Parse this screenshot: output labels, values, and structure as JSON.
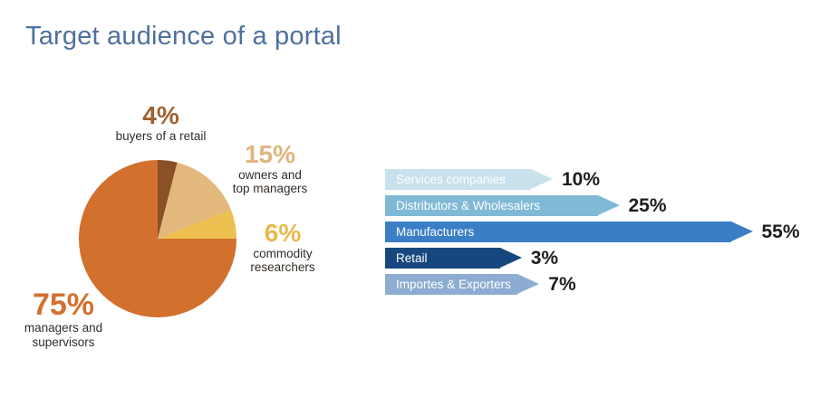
{
  "title": "Target audience of a portal",
  "colors": {
    "title": "#4e709f",
    "value_text": "#1d1d1d",
    "callout_label_text": "#332d28",
    "bar_label_text": "#ffffff"
  },
  "pie": {
    "callouts": [
      {
        "pct": "4%",
        "color": "#a0602f",
        "lines": [
          "buyers of a retail"
        ]
      },
      {
        "pct": "15%",
        "color": "#dfb57e",
        "lines": [
          "owners and",
          "top managers"
        ]
      },
      {
        "pct": "6%",
        "color": "#e9b94f",
        "lines": [
          "commodity",
          "researchers"
        ]
      },
      {
        "pct": "75%",
        "color": "#d2702e",
        "lines": [
          "managers and",
          "supervisors"
        ]
      }
    ]
  },
  "bars": {
    "items": [
      {
        "label": "Services companies",
        "value_label": "10%"
      },
      {
        "label": "Distributors & Wholesalers",
        "value_label": "25%"
      },
      {
        "label": "Manufacturers",
        "value_label": "55%"
      },
      {
        "label": "Retail",
        "value_label": "3%"
      },
      {
        "label": "Importes & Exporters",
        "value_label": "7%"
      }
    ]
  },
  "chart_data": [
    {
      "type": "pie",
      "title": "Target audience of a portal",
      "labels": [
        "buyers of a retail",
        "owners and top managers",
        "commodity researchers",
        "managers and supervisors"
      ],
      "values": [
        4,
        15,
        6,
        75
      ],
      "colors": [
        "#8a5026",
        "#e2b87c",
        "#edbf4e",
        "#d2702e"
      ],
      "start_angle": "12 o'clock",
      "direction": "clockwise",
      "data_labels": [
        "4%",
        "15%",
        "6%",
        "75%"
      ]
    },
    {
      "type": "bar",
      "orientation": "horizontal",
      "bar_shape": "arrow",
      "categories": [
        "Services companies",
        "Distributors & Wholesalers",
        "Manufacturers",
        "Retail",
        "Importes & Exporters"
      ],
      "values": [
        10,
        25,
        55,
        3,
        7
      ],
      "value_labels": [
        "10%",
        "25%",
        "55%",
        "3%",
        "7%"
      ],
      "colors": [
        "#c9e1ec",
        "#7fb9d6",
        "#3a7ec5",
        "#16477e",
        "#8cadd1"
      ],
      "xlim": [
        0,
        60
      ],
      "grid": false,
      "legend": false
    }
  ]
}
